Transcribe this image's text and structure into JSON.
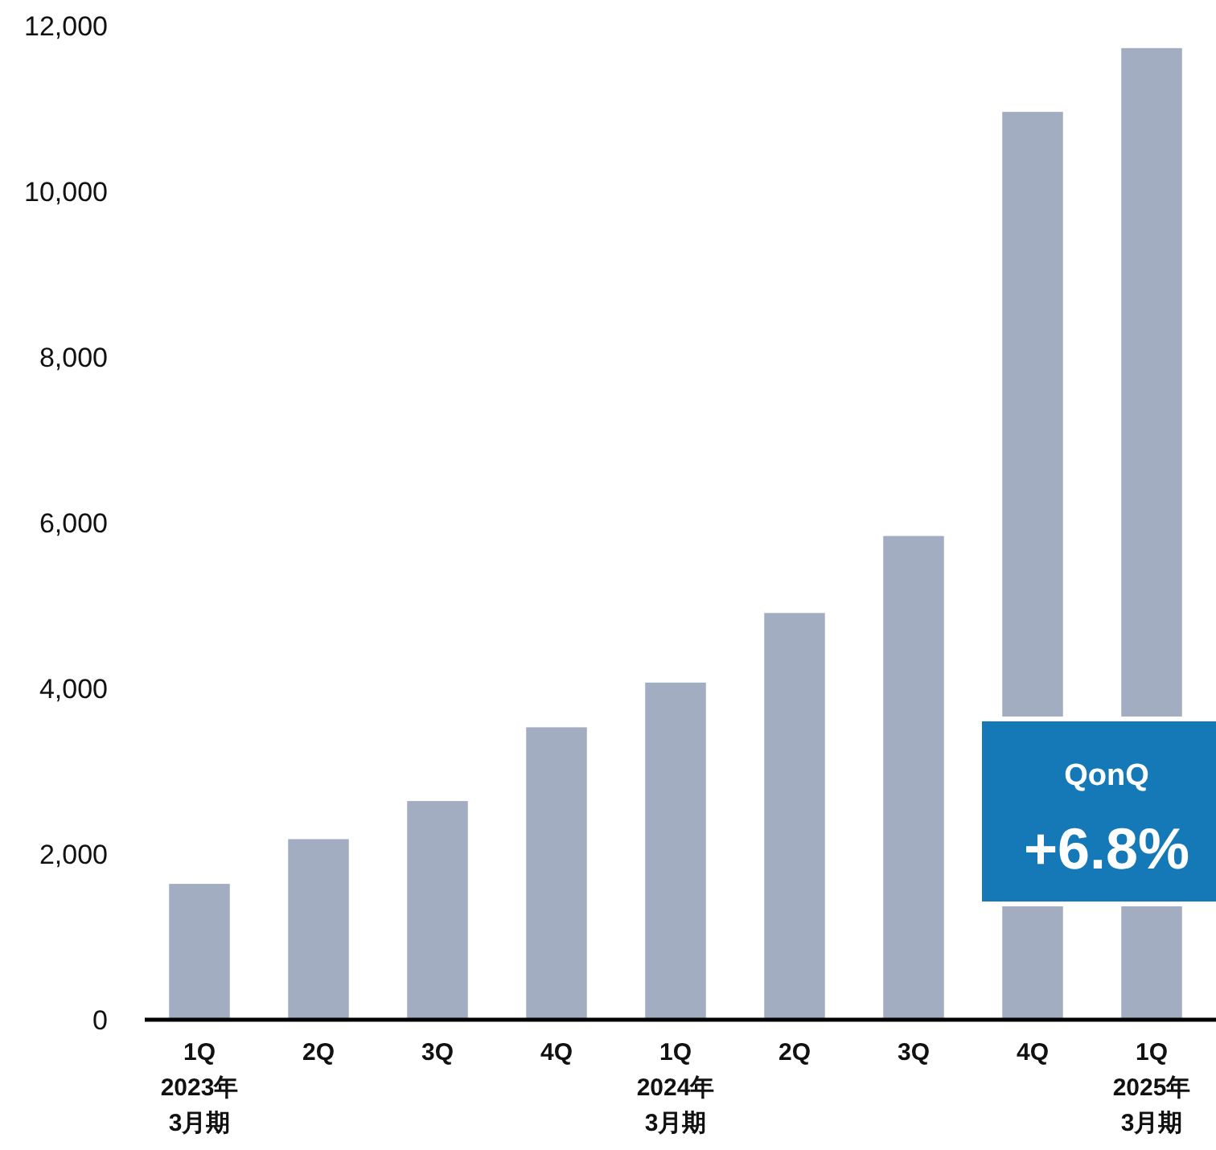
{
  "chart_data": {
    "type": "bar",
    "categories": [
      "1Q\n2023年\n3月期",
      "2Q",
      "3Q",
      "4Q",
      "1Q\n2024年\n3月期",
      "2Q",
      "3Q",
      "4Q",
      "1Q\n2025年\n3月期"
    ],
    "values": [
      1640,
      2180,
      2640,
      3530,
      4070,
      4910,
      5840,
      10960,
      11730
    ],
    "color": "#a2adc1",
    "ylim": [
      0,
      12000
    ],
    "yticks": [
      {
        "value": 0,
        "label": "0"
      },
      {
        "value": 2000,
        "label": "2,000"
      },
      {
        "value": 4000,
        "label": "4,000"
      },
      {
        "value": 6000,
        "label": "6,000"
      },
      {
        "value": 8000,
        "label": "8,000"
      },
      {
        "value": 10000,
        "label": "10,000"
      },
      {
        "value": 12000,
        "label": "12,000"
      }
    ],
    "annotations": [
      "QonQ",
      "+6.8%"
    ],
    "grid": false
  }
}
